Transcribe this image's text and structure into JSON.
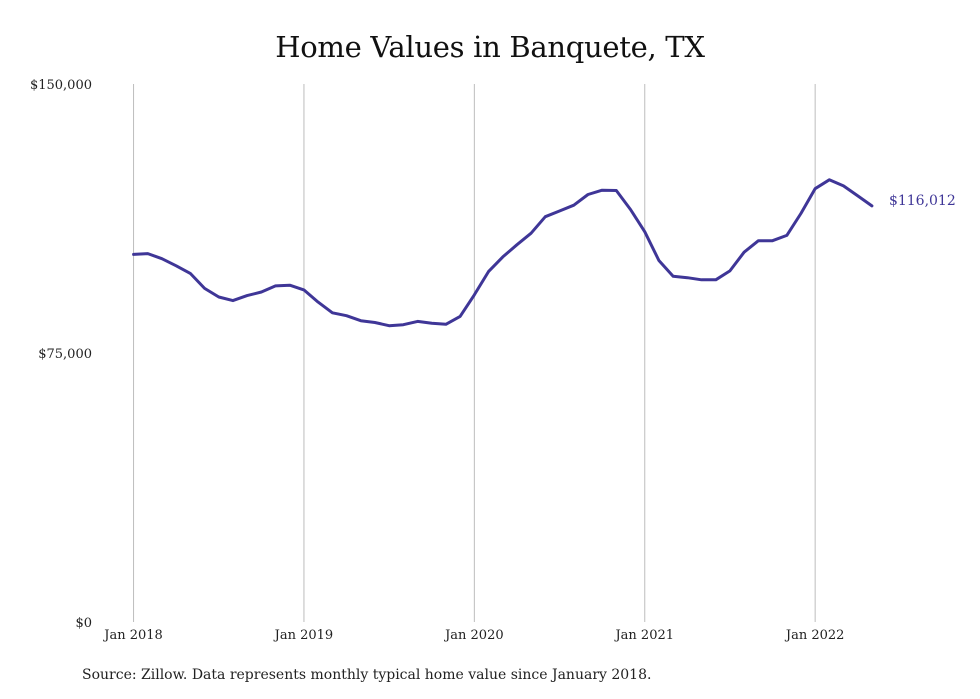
{
  "chart_data": {
    "type": "line",
    "title": "Home Values in Banquete, TX",
    "source_note": "Source: Zillow. Data represents monthly typical home value since January 2018.",
    "end_label": "$116,012",
    "color": "#3f3697",
    "ylim": [
      0,
      150000
    ],
    "y_ticks": [
      {
        "value": 0,
        "label": "$0"
      },
      {
        "value": 75000,
        "label": "$75,000"
      },
      {
        "value": 150000,
        "label": "$150,000"
      }
    ],
    "x_ticks": [
      {
        "value": "2018-01",
        "label": "Jan 2018"
      },
      {
        "value": "2019-01",
        "label": "Jan 2019"
      },
      {
        "value": "2020-01",
        "label": "Jan 2020"
      },
      {
        "value": "2021-01",
        "label": "Jan 2021"
      },
      {
        "value": "2022-01",
        "label": "Jan 2022"
      }
    ],
    "grid": {
      "vertical": true,
      "horizontal": false
    },
    "series": [
      {
        "x": [
          "2018-01",
          "2018-02",
          "2018-03",
          "2018-04",
          "2018-05",
          "2018-06",
          "2018-07",
          "2018-08",
          "2018-09",
          "2018-10",
          "2018-11",
          "2018-12",
          "2019-01",
          "2019-02",
          "2019-03",
          "2019-04",
          "2019-05",
          "2019-06",
          "2019-07",
          "2019-08",
          "2019-09",
          "2019-10",
          "2019-11",
          "2019-12",
          "2020-01",
          "2020-02",
          "2020-03",
          "2020-04",
          "2020-05",
          "2020-06",
          "2020-07",
          "2020-08",
          "2020-09",
          "2020-10",
          "2020-11",
          "2020-12",
          "2021-01",
          "2021-02",
          "2021-03",
          "2021-04",
          "2021-05",
          "2021-06",
          "2021-07",
          "2021-08",
          "2021-09",
          "2021-10",
          "2021-11",
          "2021-12",
          "2022-01",
          "2022-02",
          "2022-03",
          "2022-04",
          "2022-05"
        ],
        "values": [
          102500,
          102700,
          101300,
          99300,
          97200,
          93000,
          90600,
          89600,
          91000,
          92000,
          93700,
          93900,
          92600,
          89200,
          86200,
          85400,
          84000,
          83500,
          82600,
          82900,
          83800,
          83300,
          83000,
          85200,
          91200,
          97700,
          101800,
          105200,
          108400,
          113000,
          114600,
          116200,
          119200,
          120400,
          120300,
          115000,
          108800,
          100800,
          96400,
          96000,
          95400,
          95400,
          97900,
          103100,
          106300,
          106300,
          107800,
          113900,
          120800,
          123300,
          121600,
          118800,
          116012
        ]
      }
    ]
  }
}
